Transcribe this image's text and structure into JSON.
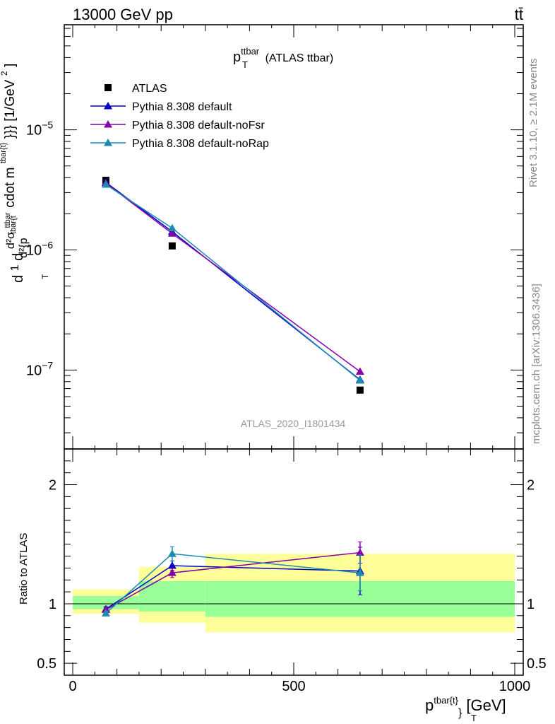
{
  "header": {
    "left_label": "13000 GeV pp",
    "right_label": "tt̄"
  },
  "side_labels": {
    "rivet": "Rivet 3.1.10, ≥ 2.1M events",
    "mcplots": "mcplots.cern.ch [arXiv:1306.3436]"
  },
  "chart_data": [
    {
      "type": "scatter",
      "title_main": "p",
      "title_sub": "T",
      "title_sup": "ttbar",
      "title_rest": " (ATLAS ttbar)",
      "ylabel": "d²σ / d(p_T^tbar{t}) ... [1/GeV²]",
      "ylabel_parts": {
        "frac_num": "1",
        "frac_den": "σ",
        "d": "d",
        "d2sig": "d²σ",
        "sup_ttbar": "ttbar",
        "d2": "d²{p",
        "sup_tbar": "tbar{t",
        "cdot": "cdot m",
        "sup_tbar2": "tbar{t}",
        "close": "}}} [1/GeV",
        "sup_2": "2",
        "close2": "]",
        "sub_T": "T"
      },
      "yscale": "log",
      "ylim": [
        2.2e-08,
        7.5e-05
      ],
      "xlim": [
        -20,
        1010
      ],
      "y_ticks": [
        {
          "value": 1e-05,
          "base": "10",
          "exp": "−5"
        },
        {
          "value": 1e-06,
          "base": "10",
          "exp": "−6"
        },
        {
          "value": 1e-07,
          "base": "10",
          "exp": "−7"
        }
      ],
      "watermark": "ATLAS_2020_I1801434",
      "legend_position": "top-left",
      "series": [
        {
          "name": "ATLAS",
          "marker": "square",
          "color": "#000000",
          "x": [
            75,
            225,
            650
          ],
          "y": [
            3.8e-06,
            1.08e-06,
            6.8e-08
          ]
        },
        {
          "name": "Pythia 8.308 default",
          "marker": "triangle",
          "color": "#0000cc",
          "x": [
            75,
            225,
            650
          ],
          "y": [
            3.65e-06,
            1.42e-06,
            8.3e-08
          ]
        },
        {
          "name": "Pythia 8.308 default-noFsr",
          "marker": "triangle",
          "color": "#8800aa",
          "x": [
            75,
            225,
            650
          ],
          "y": [
            3.6e-06,
            1.37e-06,
            9.7e-08
          ]
        },
        {
          "name": "Pythia 8.308 default-noRap",
          "marker": "triangle",
          "color": "#1a8cb0",
          "x": [
            75,
            225,
            650
          ],
          "y": [
            3.5e-06,
            1.52e-06,
            8.2e-08
          ]
        }
      ]
    },
    {
      "type": "line",
      "ylabel": "Ratio to ATLAS",
      "xlabel_main": "p",
      "xlabel_sup": "tbar{t}",
      "xlabel_rest": "}",
      "xlabel_sub": "T",
      "xlabel_unit": " [GeV]",
      "ylim": [
        0.4,
        2.3
      ],
      "y_ticks": [
        {
          "value": 0.5,
          "label": "0.5"
        },
        {
          "value": 1,
          "label": "1"
        },
        {
          "value": 2,
          "label": "2"
        }
      ],
      "x_ticks": [
        {
          "value": 0,
          "label": "0"
        },
        {
          "value": 500,
          "label": "500"
        },
        {
          "value": 1000,
          "label": "1000"
        }
      ],
      "bands": [
        {
          "x0": 0,
          "x1": 150,
          "inner": [
            0.955,
            1.065
          ],
          "outer": [
            0.915,
            1.12
          ]
        },
        {
          "x0": 150,
          "x1": 300,
          "inner": [
            0.935,
            1.19
          ],
          "outer": [
            0.84,
            1.31
          ]
        },
        {
          "x0": 300,
          "x1": 1000,
          "inner": [
            0.89,
            1.19
          ],
          "outer": [
            0.76,
            1.42
          ]
        }
      ],
      "series": [
        {
          "name": "Pythia 8.308 default",
          "color": "#0000cc",
          "x": [
            75,
            225,
            650
          ],
          "y": [
            0.955,
            1.32,
            1.275
          ],
          "err": [
            0.02,
            0.04,
            0.2
          ]
        },
        {
          "name": "Pythia 8.308 default-noFsr",
          "color": "#8800aa",
          "x": [
            75,
            225,
            650
          ],
          "y": [
            0.95,
            1.26,
            1.43
          ],
          "err": [
            0.02,
            0.04,
            0.09
          ]
        },
        {
          "name": "Pythia 8.308 default-noRap",
          "color": "#1a8cb0",
          "x": [
            75,
            225,
            650
          ],
          "y": [
            0.92,
            1.42,
            1.26
          ],
          "err": [
            0.02,
            0.06,
            0.15
          ]
        }
      ]
    }
  ]
}
